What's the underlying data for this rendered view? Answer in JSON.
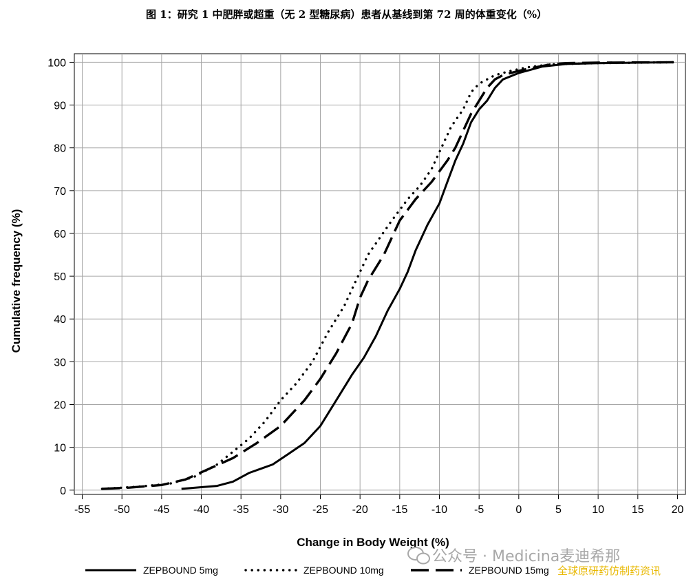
{
  "chart_data": {
    "type": "line",
    "title": "图 1：研究 1 中肥胖或超重（无 2 型糖尿病）患者从基线到第 72 周的体重变化（%）",
    "xlabel": "Change in Body Weight (%)",
    "ylabel": "Cumulative frequency (%)",
    "xlim": [
      -56,
      21
    ],
    "ylim": [
      -1,
      102
    ],
    "xticks": [
      -55,
      -50,
      -45,
      -40,
      -35,
      -30,
      -25,
      -20,
      -15,
      -10,
      -5,
      0,
      5,
      10,
      15,
      20
    ],
    "yticks": [
      0,
      10,
      20,
      30,
      40,
      50,
      60,
      70,
      80,
      90,
      100
    ],
    "grid": true,
    "legend_position": "bottom",
    "series": [
      {
        "name": "ZEPBOUND 5mg",
        "style": "solid",
        "x": [
          -42.5,
          -38,
          -36,
          -34,
          -31,
          -29,
          -27,
          -25,
          -23,
          -21,
          -19.5,
          -18,
          -16.5,
          -15,
          -14,
          -13,
          -11.5,
          -10,
          -9,
          -8,
          -7,
          -6,
          -5,
          -4,
          -3,
          -2,
          0,
          3,
          6,
          10,
          15,
          19.5
        ],
        "y": [
          0.3,
          1,
          2,
          4,
          6,
          8.5,
          11,
          15,
          21,
          27,
          31,
          36,
          42,
          47,
          51,
          56,
          62,
          67,
          72,
          77,
          81,
          86,
          89,
          91,
          94,
          96,
          97.5,
          99,
          99.6,
          99.8,
          99.9,
          100
        ]
      },
      {
        "name": "ZEPBOUND 10mg",
        "style": "dotted",
        "x": [
          -52.5,
          -48,
          -44,
          -41,
          -38,
          -36,
          -34,
          -32,
          -30,
          -28,
          -26,
          -24,
          -22,
          -21,
          -20,
          -19,
          -17.5,
          -16,
          -14,
          -12.5,
          -11,
          -10,
          -8.5,
          -7,
          -6,
          -5,
          -3,
          -1,
          1,
          4,
          10,
          19.5
        ],
        "y": [
          0.3,
          0.8,
          1.5,
          3,
          6,
          9,
          12,
          16,
          21,
          25,
          30,
          37,
          43,
          47,
          51,
          55,
          59,
          63,
          68,
          71,
          75,
          79,
          85,
          89,
          93,
          95,
          97,
          98,
          98.8,
          99.5,
          99.8,
          100
        ]
      },
      {
        "name": "ZEPBOUND 15mg",
        "style": "dashed",
        "x": [
          -52.5,
          -49,
          -45,
          -42,
          -39,
          -36,
          -33,
          -30,
          -27,
          -25,
          -23,
          -21,
          -20,
          -19,
          -17,
          -15,
          -13,
          -11,
          -9,
          -8,
          -7,
          -6,
          -5,
          -4,
          -3,
          -2,
          -1,
          0,
          2,
          4,
          6,
          10,
          19.5
        ],
        "y": [
          0.3,
          0.6,
          1.2,
          2.5,
          5,
          7.5,
          11,
          15,
          21,
          26,
          32,
          39,
          45,
          49,
          55,
          63,
          68,
          72,
          77,
          80,
          84,
          88,
          91,
          94,
          96,
          97,
          97.5,
          98,
          98.8,
          99.5,
          99.8,
          99.9,
          100
        ]
      }
    ]
  },
  "watermark": {
    "line1": "公众号 · Medicina麦迪希那",
    "line2": "全球原研药仿制药资讯"
  }
}
